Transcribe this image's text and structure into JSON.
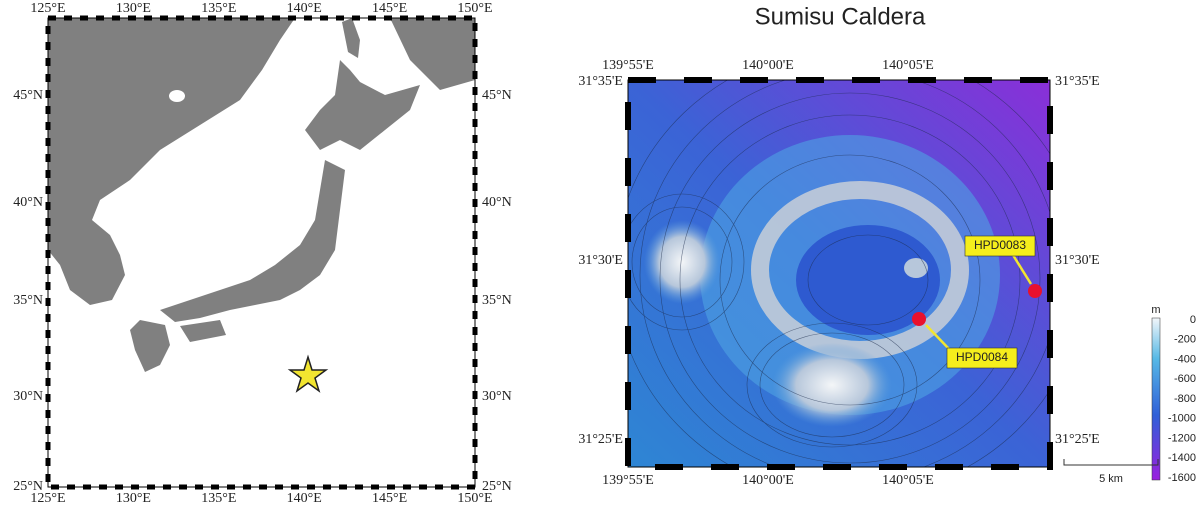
{
  "left_map": {
    "lon_labels": [
      "125°E",
      "130°E",
      "135°E",
      "140°E",
      "145°E",
      "150°E"
    ],
    "lat_labels": [
      "45°N",
      "40°N",
      "35°N",
      "30°N",
      "25°N"
    ]
  },
  "right_map": {
    "title": "Sumisu Caldera",
    "lon_labels": [
      "139°55'E",
      "140°00'E",
      "140°05'E"
    ],
    "lat_labels": [
      "31°35'E",
      "31°30'E",
      "31°25'E"
    ],
    "sites": [
      "HPD0083",
      "HPD0084"
    ],
    "colorbar": {
      "unit": "m",
      "labels": [
        0,
        -200,
        -400,
        -600,
        -800,
        -1000,
        -1200,
        -1400,
        -1600
      ]
    },
    "scale_bar": "5 km"
  }
}
